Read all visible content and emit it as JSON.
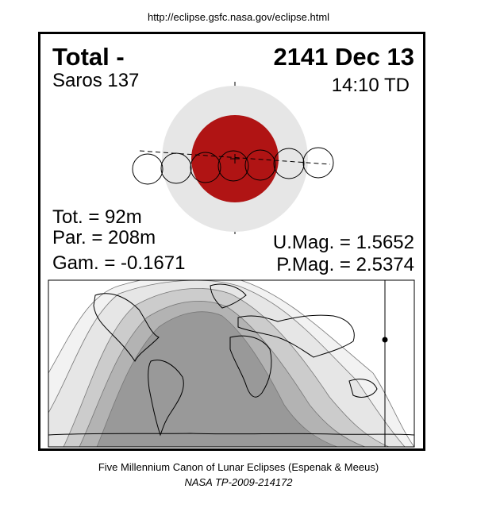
{
  "source_url": "http://eclipse.gsfc.nasa.gov/eclipse.html",
  "header": {
    "eclipse_type": "Total  -",
    "date": "2141 Dec 13",
    "saros": "Saros 137",
    "time": "14:10 TD"
  },
  "stats": {
    "total_duration": "Tot. =  92m",
    "partial_duration": "Par. = 208m",
    "gamma": "Gam. = -0.1671",
    "umbral_magnitude": "U.Mag. = 1.5652",
    "penumbral_magnitude": "P.Mag. = 2.5374"
  },
  "footer": {
    "canon": "Five Millennium Canon of Lunar Eclipses (Espenak & Meeus)",
    "publication": "NASA TP-2009-214172"
  },
  "colors": {
    "penumbra": "#e6e6e6",
    "umbra": "#b01414",
    "map_night": "#999999",
    "map_zone_dark": "#b3b3b3",
    "map_zone_mid": "#cccccc",
    "map_zone_light": "#e6e6e6",
    "map_zone_faint": "#f2f2f2"
  },
  "icons": {
    "moon": "circle-outline",
    "ecliptic": "dashed-line",
    "greatest_eclipse_marker": "filled-dot"
  }
}
